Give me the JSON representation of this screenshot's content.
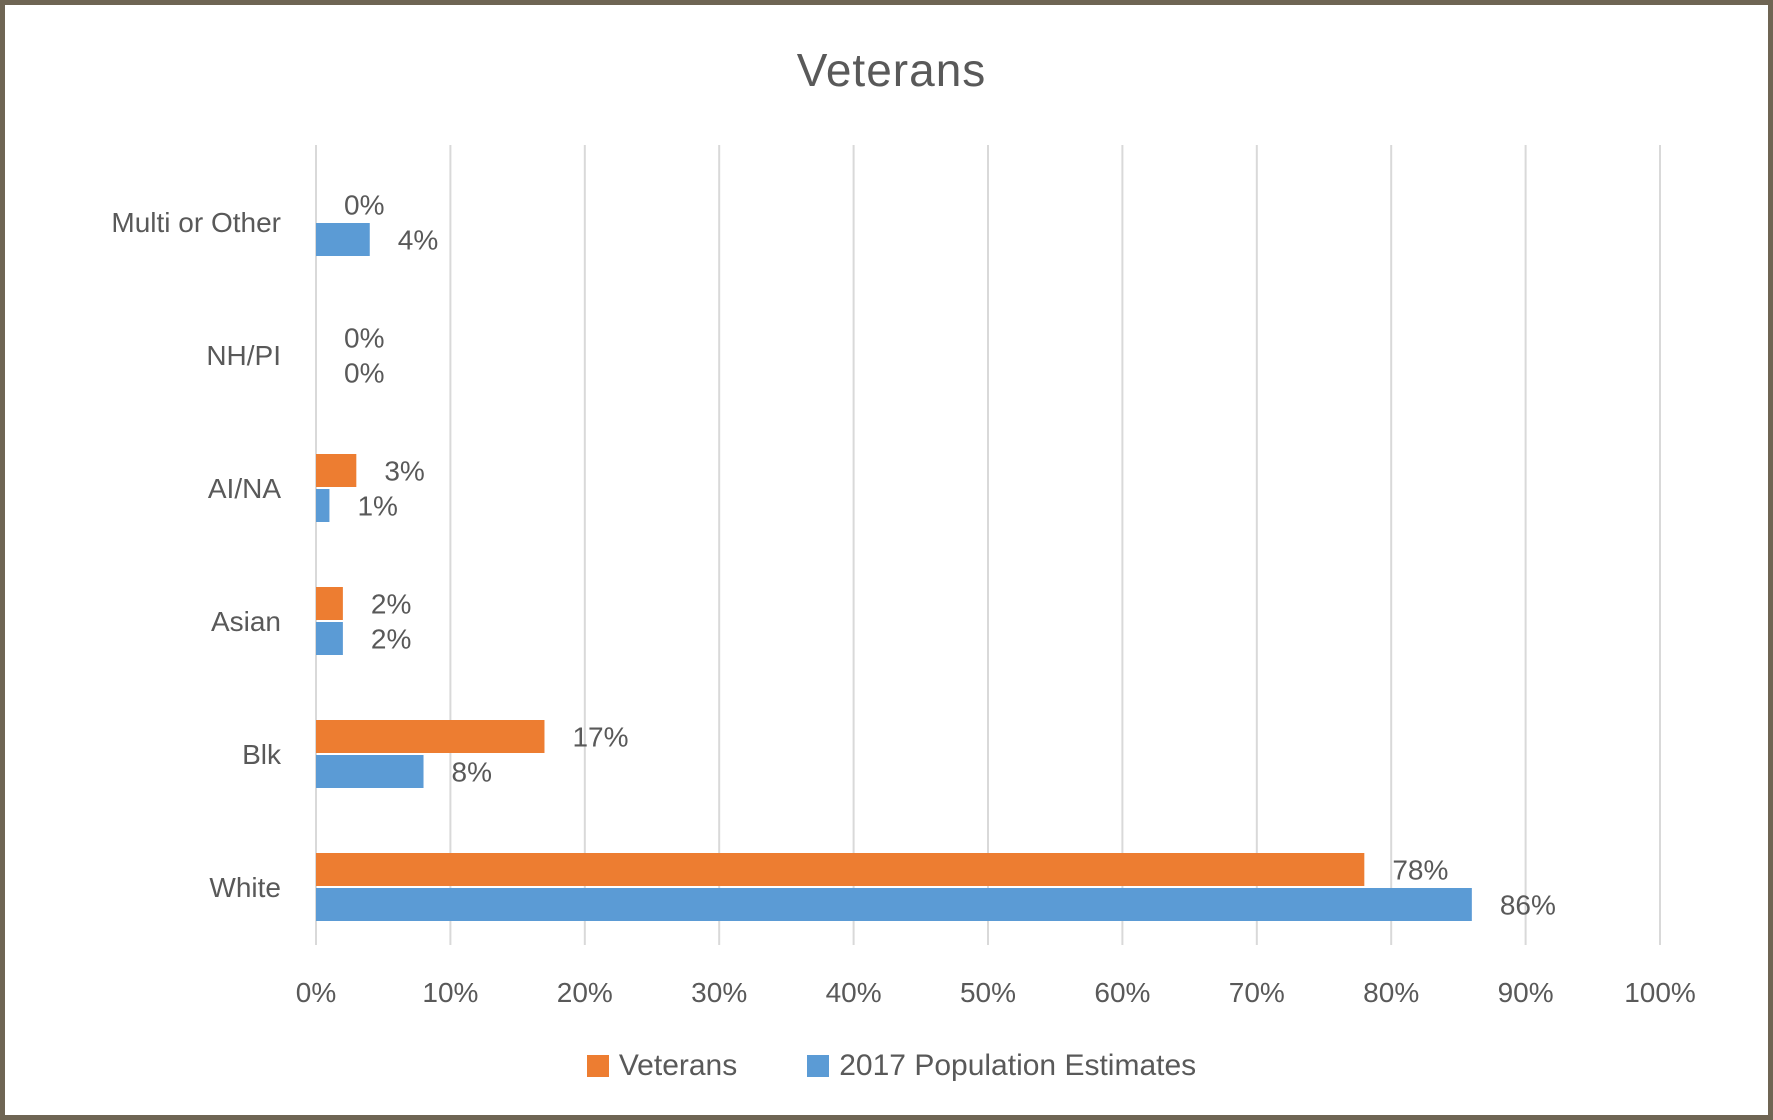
{
  "chart_data": {
    "type": "bar",
    "orientation": "horizontal",
    "title": "Veterans",
    "xlabel": "",
    "ylabel": "",
    "xlim": [
      0,
      100
    ],
    "x_ticks": [
      "0%",
      "10%",
      "20%",
      "30%",
      "40%",
      "50%",
      "60%",
      "70%",
      "80%",
      "90%",
      "100%"
    ],
    "grid": "vertical",
    "legend_position": "bottom",
    "categories": [
      "Multi or Other",
      "NH/PI",
      "AI/NA",
      "Asian",
      "Blk",
      "White"
    ],
    "series": [
      {
        "name": "Veterans",
        "color": "#ed7d31",
        "values": [
          0,
          0,
          3,
          2,
          17,
          78
        ],
        "labels": [
          "0%",
          "0%",
          "3%",
          "2%",
          "17%",
          "78%"
        ]
      },
      {
        "name": "2017 Population Estimates",
        "color": "#5b9bd5",
        "values": [
          4,
          0,
          1,
          2,
          8,
          86
        ],
        "labels": [
          "4%",
          "0%",
          "1%",
          "2%",
          "8%",
          "86%"
        ]
      }
    ]
  }
}
